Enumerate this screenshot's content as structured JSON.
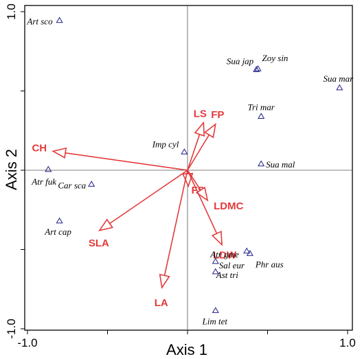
{
  "chart_data": {
    "type": "scatter",
    "title": "",
    "xlabel": "Axis 1",
    "ylabel": "Axis 2",
    "xlim": [
      -1.05,
      1.0
    ],
    "ylim": [
      -1.0,
      1.0
    ],
    "x_ticks": [
      {
        "value": -1.0,
        "label": "-1.0"
      },
      {
        "value": 1.0,
        "label": "1.0"
      }
    ],
    "y_ticks": [
      {
        "value": -1.0,
        "label": "-1.0"
      },
      {
        "value": 1.0,
        "label": "1.0"
      }
    ],
    "zero_lines": true,
    "species": [
      {
        "name": "Art sco",
        "x": -0.8,
        "y": 0.945
      },
      {
        "name": "Sua jap",
        "x": 0.43,
        "y": 0.635
      },
      {
        "name": "Zoy sin",
        "x": 0.44,
        "y": 0.64
      },
      {
        "name": "Sua mar",
        "x": 0.95,
        "y": 0.52
      },
      {
        "name": "Tri mar",
        "x": 0.46,
        "y": 0.34
      },
      {
        "name": "Imp cyl",
        "x": -0.02,
        "y": 0.115
      },
      {
        "name": "Sua mal",
        "x": 0.46,
        "y": 0.04
      },
      {
        "name": "Atr fuk",
        "x": -0.87,
        "y": 0.005
      },
      {
        "name": "Car sca",
        "x": -0.6,
        "y": -0.088
      },
      {
        "name": "Art cap",
        "x": -0.8,
        "y": -0.32
      },
      {
        "name": "Atr gme",
        "x": 0.37,
        "y": -0.51
      },
      {
        "name": "Phr aus",
        "x": 0.39,
        "y": -0.525
      },
      {
        "name": "Sal eur",
        "x": 0.175,
        "y": -0.575
      },
      {
        "name": "Ast tri",
        "x": 0.175,
        "y": -0.64
      },
      {
        "name": "Lim tet",
        "x": 0.175,
        "y": -0.885
      }
    ],
    "vectors": [
      {
        "name": "CH",
        "x": -0.84,
        "y": 0.12
      },
      {
        "name": "LS",
        "x": 0.1,
        "y": 0.3
      },
      {
        "name": "FP",
        "x": 0.175,
        "y": 0.29
      },
      {
        "name": "FS",
        "x": 0.005,
        "y": -0.1
      },
      {
        "name": "LDMC",
        "x": 0.125,
        "y": -0.19
      },
      {
        "name": "LDW",
        "x": 0.215,
        "y": -0.47
      },
      {
        "name": "SLA",
        "x": -0.55,
        "y": -0.38
      },
      {
        "name": "LA",
        "x": -0.16,
        "y": -0.74
      }
    ]
  }
}
